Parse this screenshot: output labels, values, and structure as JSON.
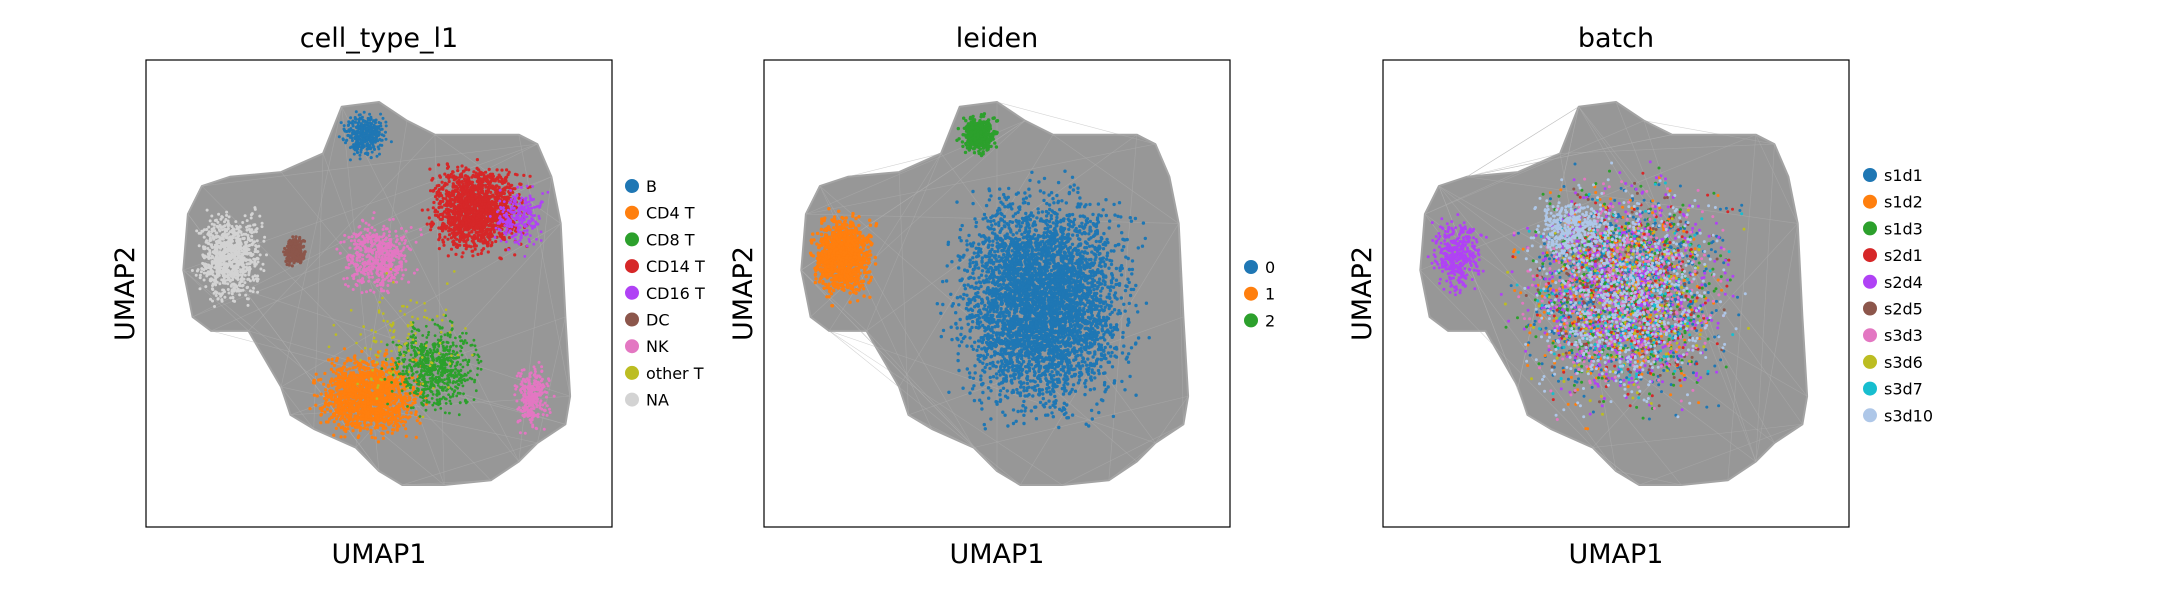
{
  "chart_data": [
    {
      "type": "scatter",
      "title": "cell_type_l1",
      "xlabel": "UMAP1",
      "ylabel": "UMAP2",
      "ticks": "none",
      "legend_position": "right",
      "overlay": "knn-graph edges (gray)",
      "series": [
        {
          "name": "B",
          "color": "#1f77b4",
          "region": "top"
        },
        {
          "name": "CD4 T",
          "color": "#ff7f0e",
          "region": "bottom-left"
        },
        {
          "name": "CD8 T",
          "color": "#2ca02c",
          "region": "bottom-center"
        },
        {
          "name": "CD14 T",
          "color": "#d62728",
          "region": "top-right"
        },
        {
          "name": "CD16 T",
          "color": "#b042f5",
          "region": "top-right"
        },
        {
          "name": "DC",
          "color": "#8c564b",
          "region": "left"
        },
        {
          "name": "NK",
          "color": "#e377c2",
          "region": "center / bottom-right"
        },
        {
          "name": "other T",
          "color": "#bcbd22",
          "region": "scattered"
        },
        {
          "name": "NA",
          "color": "#d3d3d3",
          "region": "left"
        }
      ]
    },
    {
      "type": "scatter",
      "title": "leiden",
      "xlabel": "UMAP1",
      "ylabel": "UMAP2",
      "ticks": "none",
      "legend_position": "right",
      "overlay": "knn-graph edges (gray)",
      "series": [
        {
          "name": "0",
          "color": "#1f77b4",
          "region": "main body"
        },
        {
          "name": "1",
          "color": "#ff7f0e",
          "region": "left"
        },
        {
          "name": "2",
          "color": "#2ca02c",
          "region": "top"
        }
      ]
    },
    {
      "type": "scatter",
      "title": "batch",
      "xlabel": "UMAP1",
      "ylabel": "UMAP2",
      "ticks": "none",
      "legend_position": "right",
      "overlay": "knn-graph edges (gray)",
      "series": [
        {
          "name": "s1d1",
          "color": "#1f77b4"
        },
        {
          "name": "s1d2",
          "color": "#ff7f0e"
        },
        {
          "name": "s1d3",
          "color": "#2ca02c"
        },
        {
          "name": "s2d1",
          "color": "#d62728"
        },
        {
          "name": "s2d4",
          "color": "#b042f5"
        },
        {
          "name": "s2d5",
          "color": "#8c564b"
        },
        {
          "name": "s3d3",
          "color": "#e377c2"
        },
        {
          "name": "s3d6",
          "color": "#bcbd22"
        },
        {
          "name": "s3d7",
          "color": "#17becf"
        },
        {
          "name": "s3d10",
          "color": "#aec7e8"
        }
      ]
    }
  ]
}
